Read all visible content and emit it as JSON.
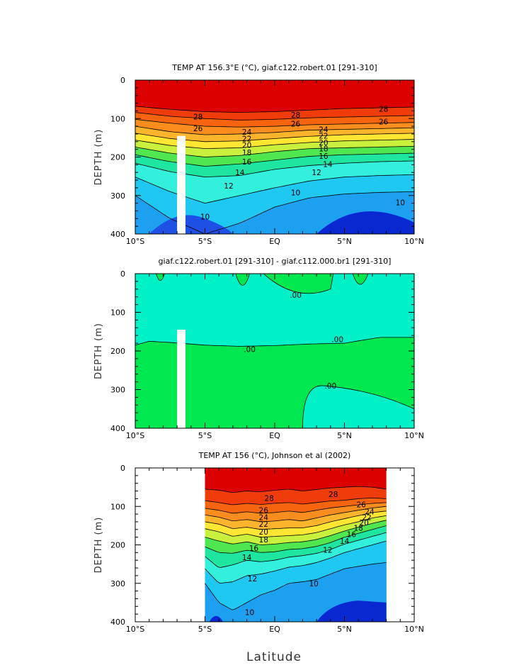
{
  "figure": {
    "xlabel": "Latitude"
  },
  "chart_data": [
    {
      "type": "contour",
      "title": "TEMP AT 156.3°E (°C), giaf.c122.robert.01 [291-310]",
      "ylabel": "DEPTH (m)",
      "xlim": [
        -10,
        10
      ],
      "ylim": [
        0,
        400
      ],
      "y_inverted": true,
      "x_ticks": [
        "10°S",
        "5°S",
        "EQ",
        "5°N",
        "10°N"
      ],
      "y_ticks": [
        "0",
        "100",
        "200",
        "300",
        "400"
      ],
      "contour_interval": 2,
      "fill_levels": [
        28,
        26,
        24,
        22,
        20,
        18,
        16,
        14,
        12,
        10,
        8
      ],
      "level_colors": [
        "#dc0000",
        "#f03c0a",
        "#f7640f",
        "#fb8c1e",
        "#fdb42d",
        "#ffe632",
        "#c8f03c",
        "#50e650",
        "#1ee6a0",
        "#32f0dc",
        "#1ec8f0",
        "#1ea0f0",
        "#1e78f0",
        "#1e50e6",
        "#0a28d2"
      ],
      "isotherm_depths": {
        "lat": [
          -10,
          -7.5,
          -5,
          -2.5,
          0,
          2.5,
          5,
          7.5,
          10
        ],
        "lines": [
          {
            "level": 28,
            "depth": [
              68,
              76,
              82,
              84,
              82,
              78,
              74,
              72,
              70
            ]
          },
          {
            "level": 26,
            "depth": [
              84,
              94,
              100,
              104,
              102,
              98,
              96,
              94,
              92
            ]
          },
          {
            "level": 24,
            "depth": [
              102,
              112,
              120,
              122,
              120,
              116,
              114,
              112,
              110
            ]
          },
          {
            "level": 22,
            "depth": [
              120,
              134,
              142,
              140,
              136,
              130,
              128,
              126,
              124
            ]
          },
          {
            "level": 20,
            "depth": [
              138,
              152,
              160,
              158,
              152,
              146,
              142,
              140,
              138
            ]
          },
          {
            "level": 18,
            "depth": [
              156,
              170,
              178,
              176,
              168,
              162,
              158,
              156,
              154
            ]
          },
          {
            "level": 16,
            "depth": [
              174,
              190,
              200,
              196,
              186,
              178,
              176,
              174,
              172
            ]
          },
          {
            "level": 14,
            "depth": [
              194,
              212,
              224,
              218,
              208,
              198,
              194,
              192,
              190
            ]
          },
          {
            "level": 12,
            "depth": [
              216,
              238,
              252,
              248,
              232,
              222,
              216,
              212,
              210
            ]
          },
          {
            "level": 10,
            "depth": [
              252,
              290,
              320,
              300,
              280,
              262,
              252,
              248,
              246
            ]
          },
          {
            "level": 8,
            "depth": [
              300,
              360,
              400,
              372,
              330,
              306,
              296,
              292,
              290
            ]
          }
        ]
      },
      "labels": [
        {
          "text": "28",
          "lat": -5.5,
          "depth": 95
        },
        {
          "text": "26",
          "lat": -5.5,
          "depth": 125
        },
        {
          "text": "28",
          "lat": 1.5,
          "depth": 90
        },
        {
          "text": "26",
          "lat": 1.5,
          "depth": 113
        },
        {
          "text": "28",
          "lat": 7.8,
          "depth": 75
        },
        {
          "text": "26",
          "lat": 7.8,
          "depth": 108
        },
        {
          "text": "24",
          "lat": -2.0,
          "depth": 135
        },
        {
          "text": "22",
          "lat": -2.0,
          "depth": 152
        },
        {
          "text": "20",
          "lat": -2.0,
          "depth": 169
        },
        {
          "text": "18",
          "lat": -2.0,
          "depth": 188
        },
        {
          "text": "16",
          "lat": -2.0,
          "depth": 212
        },
        {
          "text": "14",
          "lat": -2.5,
          "depth": 240
        },
        {
          "text": "12",
          "lat": -3.3,
          "depth": 275
        },
        {
          "text": "24",
          "lat": 3.5,
          "depth": 128
        },
        {
          "text": "22",
          "lat": 3.5,
          "depth": 145
        },
        {
          "text": "20",
          "lat": 3.5,
          "depth": 162
        },
        {
          "text": "18",
          "lat": 3.5,
          "depth": 178
        },
        {
          "text": "16",
          "lat": 3.5,
          "depth": 197
        },
        {
          "text": "14",
          "lat": 3.8,
          "depth": 218
        },
        {
          "text": "12",
          "lat": 3.0,
          "depth": 240
        },
        {
          "text": "10",
          "lat": 1.5,
          "depth": 292
        },
        {
          "text": "10",
          "lat": -5.0,
          "depth": 355
        },
        {
          "text": "10",
          "lat": 9.0,
          "depth": 318
        }
      ],
      "missing_bar": {
        "lat_from": -7.0,
        "lat_to": -6.4,
        "depth_from": 145,
        "depth_to": 400
      }
    },
    {
      "type": "contour",
      "title": "giaf.c122.robert.01 [291-310] - giaf.c112.000.br1 [291-310]",
      "ylabel": "DEPTH (m)",
      "xlim": [
        -10,
        10
      ],
      "ylim": [
        0,
        400
      ],
      "y_inverted": true,
      "x_ticks": [
        "10°S",
        "5°S",
        "EQ",
        "5°N",
        "10°N"
      ],
      "y_ticks": [
        "0",
        "100",
        "200",
        "300",
        "400"
      ],
      "fill_colors": {
        "near_zero_negative": "#00f0c8",
        "near_zero_positive": "#00e850"
      },
      "zero_line": {
        "lat": [
          -10,
          -9,
          -7.5,
          -5,
          -2.5,
          0,
          2.5,
          5,
          7.5,
          10
        ],
        "depth": [
          185,
          175,
          178,
          185,
          188,
          186,
          182,
          180,
          165,
          165
        ]
      },
      "labels": [
        {
          "text": ".00",
          "lat": 1.5,
          "depth": 55
        },
        {
          "text": ".00",
          "lat": -1.8,
          "depth": 195
        },
        {
          "text": ".00",
          "lat": 4.5,
          "depth": 170
        },
        {
          "text": ".00",
          "lat": 4.0,
          "depth": 290
        }
      ],
      "missing_bar": {
        "lat_from": -7.0,
        "lat_to": -6.4,
        "depth_from": 145,
        "depth_to": 400
      }
    },
    {
      "type": "contour",
      "title": "TEMP AT 156 (°C), Johnson et al (2002)",
      "ylabel": "DEPTH (m)",
      "xlabel": "Latitude",
      "xlim": [
        -10,
        10
      ],
      "ylim": [
        0,
        400
      ],
      "y_inverted": true,
      "data_lat_range": [
        -5,
        8
      ],
      "x_ticks": [
        "10°S",
        "5°S",
        "EQ",
        "5°N",
        "10°N"
      ],
      "y_ticks": [
        "0",
        "100",
        "200",
        "300",
        "400"
      ],
      "contour_interval": 2,
      "fill_levels": [
        28,
        26,
        24,
        22,
        20,
        18,
        16,
        14,
        12,
        10,
        8
      ],
      "level_colors": [
        "#dc0000",
        "#f03c0a",
        "#f7640f",
        "#fb8c1e",
        "#fdb42d",
        "#ffe632",
        "#c8f03c",
        "#50e650",
        "#1ee6a0",
        "#32f0dc",
        "#1ec8f0",
        "#1ea0f0",
        "#1e78f0",
        "#1e50e6",
        "#0a28d2"
      ],
      "isotherm_depths": {
        "lat": [
          -5,
          -4,
          -3,
          -2,
          -1,
          0,
          1,
          2,
          3,
          4,
          5,
          6,
          7,
          8
        ],
        "lines": [
          {
            "level": 28,
            "depth": [
              55,
              58,
              64,
              60,
              62,
              58,
              55,
              60,
              56,
              52,
              50,
              48,
              50,
              55
            ]
          },
          {
            "level": 26,
            "depth": [
              85,
              90,
              96,
              92,
              95,
              92,
              90,
              94,
              90,
              86,
              84,
              80,
              78,
              80
            ]
          },
          {
            "level": 24,
            "depth": [
              105,
              110,
              118,
              114,
              118,
              116,
              112,
              116,
              110,
              104,
              100,
              96,
              92,
              90
            ]
          },
          {
            "level": 22,
            "depth": [
              122,
              128,
              138,
              134,
              140,
              138,
              134,
              138,
              130,
              122,
              116,
              110,
              104,
              100
            ]
          },
          {
            "level": 20,
            "depth": [
              140,
              146,
              158,
              154,
              160,
              158,
              156,
              156,
              150,
              140,
              132,
              124,
              116,
              112
            ]
          },
          {
            "level": 18,
            "depth": [
              158,
              166,
              178,
              172,
              180,
              178,
              176,
              174,
              168,
              158,
              148,
              140,
              130,
              124
            ]
          },
          {
            "level": 16,
            "depth": [
              180,
              190,
              198,
              192,
              200,
              198,
              194,
              192,
              186,
              176,
              164,
              154,
              144,
              136
            ]
          },
          {
            "level": 14,
            "depth": [
              205,
              220,
              222,
              214,
              220,
              218,
              212,
              210,
              204,
              194,
              180,
              170,
              160,
              150
            ]
          },
          {
            "level": 12,
            "depth": [
              230,
              260,
              252,
              240,
              244,
              240,
              232,
              228,
              222,
              212,
              198,
              188,
              178,
              168
            ]
          },
          {
            "level": 10,
            "depth": [
              262,
              300,
              296,
              280,
              276,
              268,
              258,
              254,
              246,
              234,
              220,
              210,
              200,
              190
            ]
          },
          {
            "level": 8,
            "depth": [
              300,
              350,
              370,
              350,
              330,
              318,
              300,
              296,
              290,
              276,
              262,
              256,
              250,
              246
            ]
          }
        ]
      },
      "labels": [
        {
          "text": "28",
          "lat": -0.4,
          "depth": 78
        },
        {
          "text": "28",
          "lat": 4.2,
          "depth": 68
        },
        {
          "text": "26",
          "lat": -0.8,
          "depth": 110
        },
        {
          "text": "24",
          "lat": -0.8,
          "depth": 128
        },
        {
          "text": "22",
          "lat": -0.8,
          "depth": 146
        },
        {
          "text": "20",
          "lat": -0.8,
          "depth": 166
        },
        {
          "text": "18",
          "lat": -0.8,
          "depth": 186
        },
        {
          "text": "16",
          "lat": -1.5,
          "depth": 208
        },
        {
          "text": "14",
          "lat": -2.0,
          "depth": 232
        },
        {
          "text": "12",
          "lat": -1.6,
          "depth": 288
        },
        {
          "text": "10",
          "lat": 2.8,
          "depth": 300
        },
        {
          "text": "10",
          "lat": -1.8,
          "depth": 375
        },
        {
          "text": "26",
          "lat": 6.2,
          "depth": 95
        },
        {
          "text": "24",
          "lat": 6.8,
          "depth": 113
        },
        {
          "text": "22",
          "lat": 6.6,
          "depth": 128
        },
        {
          "text": "20",
          "lat": 6.4,
          "depth": 142
        },
        {
          "text": "18",
          "lat": 6.0,
          "depth": 156
        },
        {
          "text": "16",
          "lat": 5.5,
          "depth": 172
        },
        {
          "text": "14",
          "lat": 5.0,
          "depth": 190
        },
        {
          "text": "12",
          "lat": 3.8,
          "depth": 213
        }
      ]
    }
  ]
}
